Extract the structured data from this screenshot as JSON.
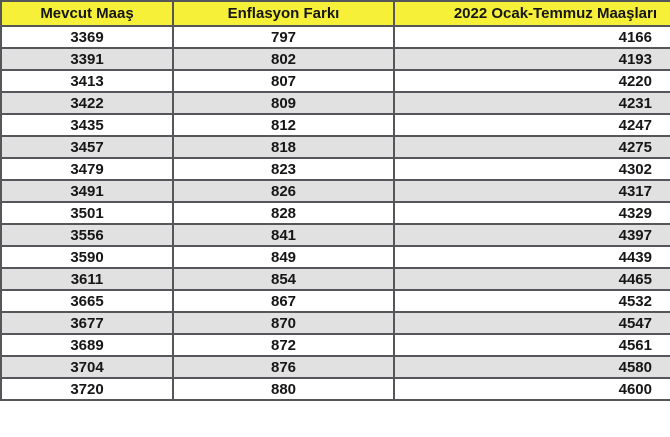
{
  "chart_data": {
    "type": "table",
    "title": "",
    "columns": [
      "Mevcut Maaş",
      "Enflasyon Farkı",
      "2022 Ocak-Temmuz Maaşları"
    ],
    "rows": [
      [
        3369,
        797,
        4166
      ],
      [
        3391,
        802,
        4193
      ],
      [
        3413,
        807,
        4220
      ],
      [
        3422,
        809,
        4231
      ],
      [
        3435,
        812,
        4247
      ],
      [
        3457,
        818,
        4275
      ],
      [
        3479,
        823,
        4302
      ],
      [
        3491,
        826,
        4317
      ],
      [
        3501,
        828,
        4329
      ],
      [
        3556,
        841,
        4397
      ],
      [
        3590,
        849,
        4439
      ],
      [
        3611,
        854,
        4465
      ],
      [
        3665,
        867,
        4532
      ],
      [
        3677,
        870,
        4547
      ],
      [
        3689,
        872,
        4561
      ],
      [
        3704,
        876,
        4580
      ],
      [
        3720,
        880,
        4600
      ]
    ]
  },
  "colors": {
    "header_bg": "#f6f138",
    "row_bg": "#ffffff",
    "row_alt_bg": "#e1e1e1",
    "border": "#55565a",
    "text": "#161616"
  }
}
